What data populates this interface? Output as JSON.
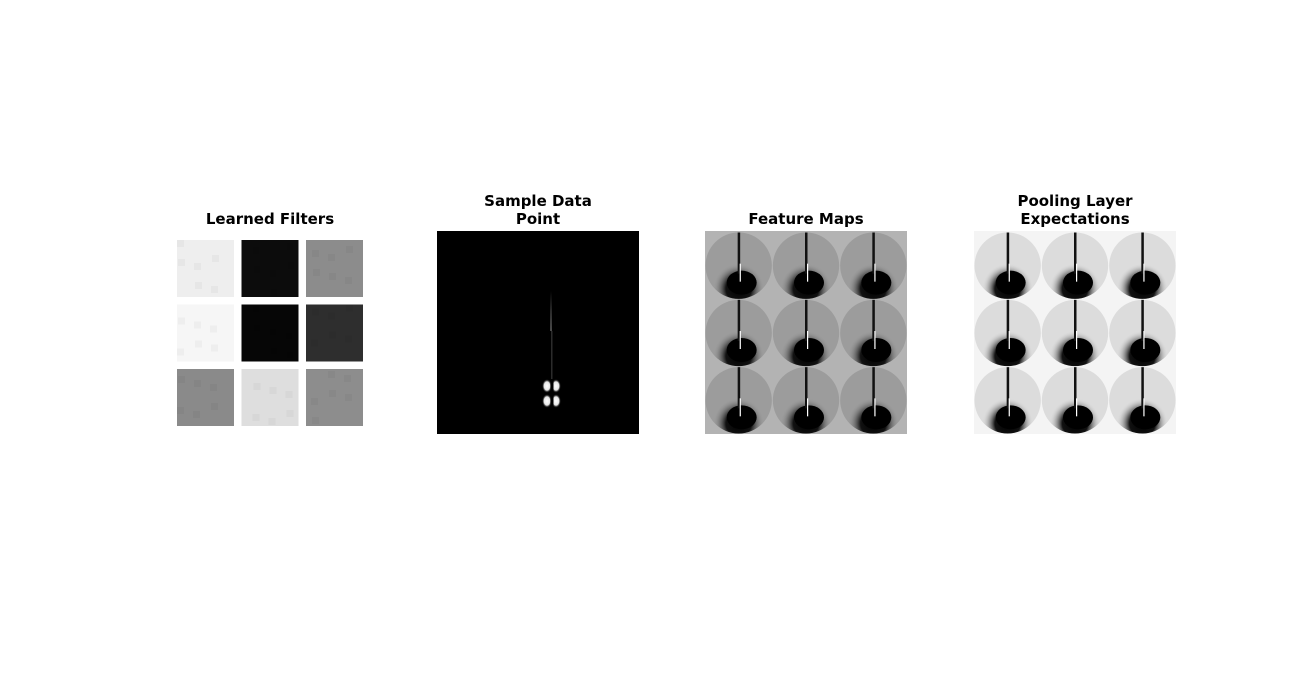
{
  "panels": {
    "learned_filters": {
      "title": "Learned Filters"
    },
    "sample_data_point": {
      "title_line1": "Sample Data",
      "title_line2": "Point"
    },
    "feature_maps": {
      "title": "Feature Maps"
    },
    "pooling_layer": {
      "title_line1": "Pooling Layer",
      "title_line2": "Expectations"
    }
  },
  "filter_gray_levels": [
    "#eeeeee",
    "#0c0c0c",
    "#8c8c8c",
    "#f6f6f6",
    "#060606",
    "#2e2e2e",
    "#8a8a8a",
    "#dedede",
    "#8d8d8d"
  ],
  "colors": {
    "background": "#ffffff",
    "feature_map_background": "#b3b3b3",
    "pooling_background": "#f4f4f4"
  }
}
